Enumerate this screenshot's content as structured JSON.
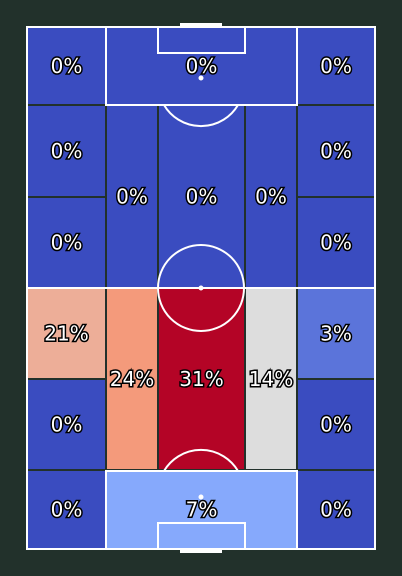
{
  "chart_data": {
    "type": "heatmap",
    "title": "",
    "colors": {
      "background": "#22312b",
      "pitch_lines": "#ffffff",
      "zone_border": "#22312b",
      "scale": {
        "zero": "#3a4cc0",
        "low": "#86a9fc",
        "mid": "#dddddd",
        "high": "#f49a7b",
        "max": "#b40426"
      }
    },
    "zones": [
      {
        "id": "top-left",
        "value": 0,
        "label": "0%"
      },
      {
        "id": "top-center",
        "value": 0,
        "label": "0%"
      },
      {
        "id": "top-right",
        "value": 0,
        "label": "0%"
      },
      {
        "id": "upper-left-1",
        "value": 0,
        "label": "0%"
      },
      {
        "id": "upper-right-1",
        "value": 0,
        "label": "0%"
      },
      {
        "id": "upper-left-2",
        "value": 0,
        "label": "0%"
      },
      {
        "id": "upper-right-2",
        "value": 0,
        "label": "0%"
      },
      {
        "id": "upper-half-left",
        "value": 0,
        "label": "0%"
      },
      {
        "id": "upper-half-center",
        "value": 0,
        "label": "0%"
      },
      {
        "id": "upper-half-right",
        "value": 0,
        "label": "0%"
      },
      {
        "id": "lower-left-1",
        "value": 21,
        "label": "21%"
      },
      {
        "id": "lower-right-1",
        "value": 3,
        "label": "3%"
      },
      {
        "id": "lower-half-left",
        "value": 24,
        "label": "24%"
      },
      {
        "id": "lower-half-center",
        "value": 31,
        "label": "31%"
      },
      {
        "id": "lower-half-right",
        "value": 14,
        "label": "14%"
      },
      {
        "id": "lower-left-2",
        "value": 0,
        "label": "0%"
      },
      {
        "id": "lower-right-2",
        "value": 0,
        "label": "0%"
      },
      {
        "id": "bottom-left",
        "value": 0,
        "label": "0%"
      },
      {
        "id": "bottom-center",
        "value": 7,
        "label": "7%"
      },
      {
        "id": "bottom-right",
        "value": 0,
        "label": "0%"
      }
    ]
  }
}
